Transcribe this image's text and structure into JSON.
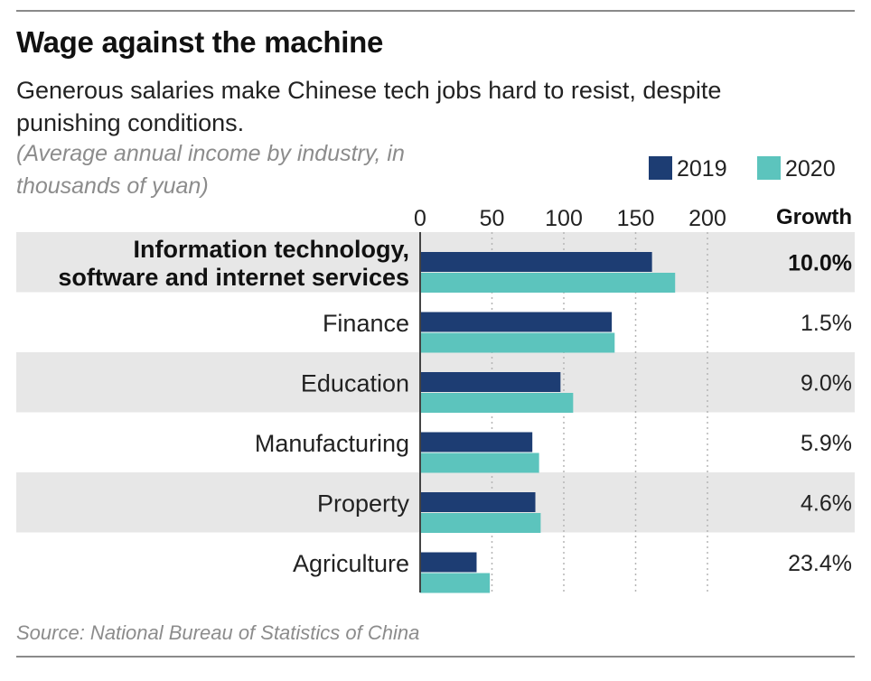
{
  "header": {
    "title": "Wage against the machine",
    "subtitle": "Generous salaries make Chinese tech jobs hard to resist, despite punishing conditions.",
    "note": "(Average annual income by industry, in thousands of yuan)"
  },
  "footer": {
    "source": "Source: National Bureau of Statistics of China"
  },
  "colors": {
    "series_2019": "#1d3d73",
    "series_2020": "#5cc4bd",
    "band": "#e7e7e7",
    "grid": "#b5b5b5"
  },
  "growth_header": "Growth",
  "chart_data": {
    "type": "bar",
    "orientation": "horizontal",
    "title": "Wage against the machine",
    "subtitle": "Generous salaries make Chinese tech jobs hard to resist, despite punishing conditions.",
    "xlabel": "(Average annual income by industry, in thousands of yuan)",
    "ylabel": "",
    "xlim": [
      0,
      200
    ],
    "ticks": [
      0,
      50,
      100,
      150,
      200
    ],
    "grid": true,
    "legend_position": "top-right",
    "categories": [
      [
        "Information technology,",
        "software and internet services"
      ],
      [
        "Finance"
      ],
      [
        "Education"
      ],
      [
        "Manufacturing"
      ],
      [
        "Property"
      ],
      [
        "Agriculture"
      ]
    ],
    "highlight_index": 0,
    "series": [
      {
        "name": "2019",
        "values": [
          161.4,
          133.4,
          97.7,
          78.1,
          80.2,
          39.3
        ]
      },
      {
        "name": "2020",
        "values": [
          177.5,
          135.4,
          106.5,
          82.8,
          83.9,
          48.5
        ]
      }
    ],
    "growth": [
      "10.0%",
      "1.5%",
      "9.0%",
      "5.9%",
      "4.6%",
      "23.4%"
    ]
  }
}
